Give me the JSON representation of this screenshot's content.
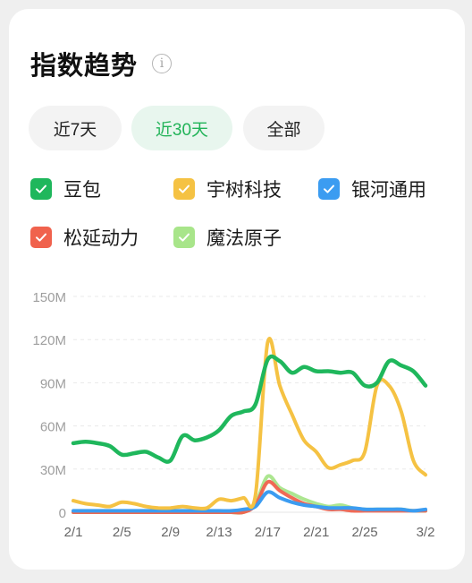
{
  "header": {
    "title": "指数趋势",
    "info_icon": "info-circle-icon"
  },
  "tabs": [
    {
      "label": "近7天",
      "active": false
    },
    {
      "label": "近30天",
      "active": true
    },
    {
      "label": "全部",
      "active": false
    }
  ],
  "chart_data": {
    "type": "line",
    "title": "",
    "xlabel": "",
    "ylabel": "",
    "ylim": [
      0,
      150
    ],
    "y_unit": "M",
    "y_ticks": [
      0,
      30,
      60,
      90,
      120,
      150
    ],
    "y_tick_labels": [
      "0",
      "30M",
      "60M",
      "90M",
      "120M",
      "150M"
    ],
    "x": [
      "2/1",
      "2/2",
      "2/3",
      "2/4",
      "2/5",
      "2/6",
      "2/7",
      "2/8",
      "2/9",
      "2/10",
      "2/11",
      "2/12",
      "2/13",
      "2/14",
      "2/15",
      "2/16",
      "2/17",
      "2/18",
      "2/19",
      "2/20",
      "2/21",
      "2/22",
      "2/23",
      "2/24",
      "2/25",
      "2/26",
      "2/27",
      "2/28",
      "3/1",
      "3/2"
    ],
    "x_tick_labels": [
      "2/1",
      "2/5",
      "2/9",
      "2/13",
      "2/17",
      "2/21",
      "2/25",
      "3/2"
    ],
    "grid": "horizontal dashed",
    "legend_placement": "top",
    "series": [
      {
        "name": "豆包",
        "color": "#1fb75c",
        "checked": true,
        "values": [
          48,
          49,
          48,
          46,
          40,
          41,
          42,
          38,
          36,
          53,
          50,
          52,
          57,
          67,
          70,
          75,
          106,
          105,
          97,
          101,
          98,
          98,
          97,
          97,
          88,
          90,
          105,
          102,
          98,
          88
        ]
      },
      {
        "name": "宇树科技",
        "color": "#f5c243",
        "checked": true,
        "values": [
          8,
          6,
          5,
          4,
          7,
          6,
          4,
          3,
          3,
          4,
          3,
          3,
          9,
          8,
          10,
          12,
          118,
          88,
          68,
          50,
          42,
          31,
          33,
          36,
          42,
          88,
          88,
          70,
          36,
          26
        ]
      },
      {
        "name": "银河通用",
        "color": "#3b9cf1",
        "checked": true,
        "values": [
          1,
          1,
          1,
          1,
          1,
          1,
          1,
          1,
          1,
          1,
          1,
          1,
          1,
          1,
          2,
          4,
          14,
          10,
          7,
          5,
          4,
          3,
          3,
          3,
          2,
          2,
          2,
          2,
          1,
          2
        ]
      },
      {
        "name": "松延动力",
        "color": "#f0624d",
        "checked": true,
        "values": [
          0,
          0,
          0,
          0,
          0,
          0,
          0,
          0,
          0,
          0,
          0,
          0,
          0,
          0,
          0,
          5,
          21,
          15,
          10,
          6,
          4,
          2,
          2,
          1,
          1,
          1,
          1,
          1,
          1,
          1
        ]
      },
      {
        "name": "魔法原子",
        "color": "#a8e58a",
        "checked": true,
        "values": [
          0,
          0,
          0,
          0,
          0,
          0,
          0,
          0,
          0,
          0,
          0,
          0,
          0,
          0,
          0,
          6,
          25,
          17,
          13,
          9,
          6,
          4,
          5,
          3,
          2,
          2,
          2,
          2,
          1,
          1
        ]
      }
    ]
  }
}
